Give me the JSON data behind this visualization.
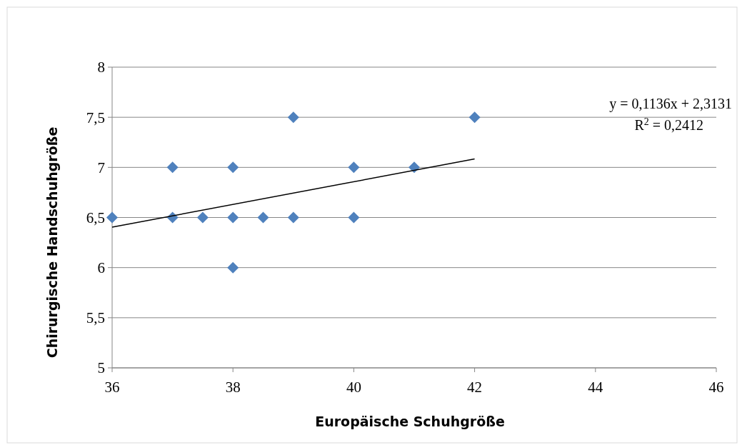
{
  "chart_data": {
    "type": "scatter",
    "xlabel": "Europäische Schuhgröße",
    "ylabel": "Chirurgische Handschuhgröße",
    "xlim": [
      36,
      46
    ],
    "xticks": [
      36,
      38,
      40,
      42,
      44,
      46
    ],
    "ylim": [
      5,
      8
    ],
    "yticks": [
      5,
      {
        "value": 5.5,
        "label": "5,5"
      },
      6,
      {
        "value": 6.5,
        "label": "6,5"
      },
      7,
      {
        "value": 7.5,
        "label": "7,5"
      },
      8
    ],
    "grid": "y",
    "marker": "diamond",
    "series": [
      {
        "color": "#4f81bd",
        "x": [
          36,
          37,
          37,
          37.5,
          38,
          38,
          38,
          38.5,
          39,
          39,
          40,
          40,
          41,
          42
        ],
        "values": [
          6.5,
          7,
          6.5,
          6.5,
          7,
          6.5,
          6,
          6.5,
          7.5,
          6.5,
          7,
          6.5,
          7,
          7.5
        ]
      },
      {
        "type": "line",
        "color": "#000000",
        "marker": "none",
        "x": [
          36,
          42
        ],
        "values": [
          6.403,
          7.084
        ]
      }
    ],
    "annotations": [
      "y = 0,1136x + 2,3131",
      "R$^{2}$ = 0,2412"
    ]
  }
}
